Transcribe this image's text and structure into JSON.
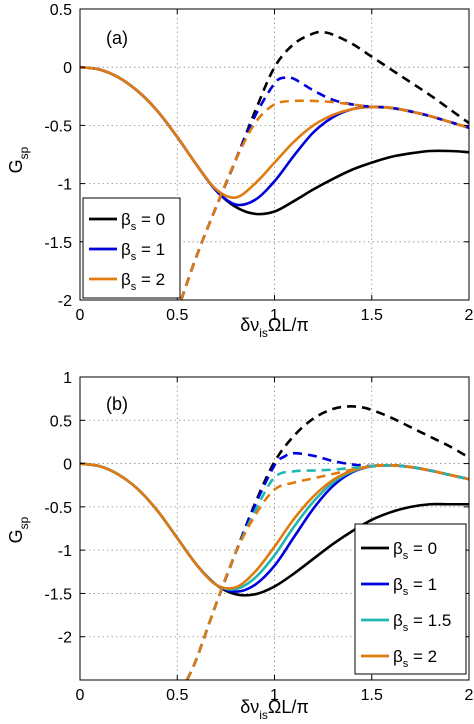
{
  "chart_data": [
    {
      "type": "line",
      "panel_label": "(a)",
      "xlabel": "δν",
      "xlabel_sub": "is",
      "xlabel_rest": "ΩL/π",
      "ylabel": "G",
      "ylabel_sub": "sp",
      "xlim": [
        0,
        2
      ],
      "ylim": [
        -2,
        0.5
      ],
      "xticks": [
        0,
        0.5,
        1,
        1.5,
        2
      ],
      "xtick_labels": [
        "0",
        "0.5",
        "1",
        "1.5",
        "2"
      ],
      "yticks": [
        0.5,
        0,
        -0.5,
        -1,
        -1.5,
        -2
      ],
      "ytick_labels": [
        "0.5",
        "0",
        "-0.5",
        "-1",
        "-1.5",
        "-2"
      ],
      "grid": true,
      "legend_position": "bottom-left",
      "series": [
        {
          "name": "β_s = 0",
          "label_main": "β",
          "label_sub": "s",
          "label_val": "= 0",
          "color": "#000000",
          "in_legend": true,
          "style": "solid",
          "x": [
            0,
            0.1,
            0.2,
            0.3,
            0.4,
            0.5,
            0.6,
            0.7,
            0.8,
            0.9,
            1.0,
            1.1,
            1.2,
            1.3,
            1.4,
            1.5,
            1.6,
            1.7,
            1.8,
            1.9,
            2.0
          ],
          "y": [
            0,
            -0.02,
            -0.09,
            -0.21,
            -0.38,
            -0.6,
            -0.84,
            -1.06,
            -1.2,
            -1.26,
            -1.24,
            -1.15,
            -1.05,
            -0.96,
            -0.88,
            -0.82,
            -0.77,
            -0.74,
            -0.72,
            -0.72,
            -0.73
          ]
        },
        {
          "name": "β_s = 1",
          "label_main": "β",
          "label_sub": "s",
          "label_val": "= 1",
          "color": "#0000dd",
          "in_legend": true,
          "style": "solid",
          "x": [
            0,
            0.1,
            0.2,
            0.3,
            0.4,
            0.5,
            0.6,
            0.7,
            0.8,
            0.9,
            1.0,
            1.1,
            1.2,
            1.3,
            1.4,
            1.5,
            1.6,
            1.7,
            1.8,
            1.9,
            2.0
          ],
          "y": [
            0,
            -0.02,
            -0.09,
            -0.21,
            -0.38,
            -0.6,
            -0.84,
            -1.06,
            -1.18,
            -1.14,
            -0.98,
            -0.76,
            -0.56,
            -0.43,
            -0.36,
            -0.34,
            -0.35,
            -0.38,
            -0.42,
            -0.47,
            -0.52
          ]
        },
        {
          "name": "β_s = 2",
          "label_main": "β",
          "label_sub": "s",
          "label_val": "= 2",
          "color": "#e07b10",
          "in_legend": true,
          "style": "solid",
          "x": [
            0,
            0.1,
            0.2,
            0.3,
            0.4,
            0.5,
            0.6,
            0.7,
            0.8,
            0.9,
            1.0,
            1.1,
            1.2,
            1.3,
            1.4,
            1.5,
            1.6,
            1.7,
            1.8,
            1.9,
            2.0
          ],
          "y": [
            0,
            -0.02,
            -0.09,
            -0.21,
            -0.38,
            -0.6,
            -0.84,
            -1.05,
            -1.12,
            -1.0,
            -0.82,
            -0.64,
            -0.5,
            -0.41,
            -0.36,
            -0.34,
            -0.35,
            -0.38,
            -0.42,
            -0.47,
            -0.52
          ]
        },
        {
          "name": "β_s = 0 (dashed)",
          "color": "#000000",
          "in_legend": false,
          "style": "dashed",
          "x": [
            0.52,
            0.6,
            0.7,
            0.8,
            0.9,
            1.0,
            1.1,
            1.2,
            1.25,
            1.3,
            1.4,
            1.5,
            1.6,
            1.7,
            1.8,
            1.9,
            2.0
          ],
          "y": [
            -2.0,
            -1.62,
            -1.2,
            -0.8,
            -0.38,
            0.0,
            0.2,
            0.29,
            0.3,
            0.28,
            0.2,
            0.09,
            -0.02,
            -0.13,
            -0.24,
            -0.36,
            -0.48
          ]
        },
        {
          "name": "β_s = 1 (dashed)",
          "color": "#0000dd",
          "in_legend": false,
          "style": "dashed",
          "x": [
            0.52,
            0.6,
            0.7,
            0.8,
            0.9,
            1.0,
            1.05,
            1.1,
            1.2,
            1.3,
            1.4,
            1.5,
            1.6,
            1.7,
            1.8,
            1.9,
            2.0
          ],
          "y": [
            -2.0,
            -1.62,
            -1.2,
            -0.8,
            -0.42,
            -0.14,
            -0.09,
            -0.1,
            -0.2,
            -0.28,
            -0.32,
            -0.34,
            -0.35,
            -0.38,
            -0.42,
            -0.47,
            -0.52
          ]
        },
        {
          "name": "β_s = 2 (dashed)",
          "color": "#e07b10",
          "in_legend": false,
          "style": "dashed",
          "x": [
            0.52,
            0.6,
            0.7,
            0.8,
            0.9,
            1.0,
            1.1,
            1.2,
            1.3,
            1.4,
            1.5,
            1.6,
            1.7,
            1.8,
            1.9,
            2.0
          ],
          "y": [
            -2.0,
            -1.62,
            -1.2,
            -0.8,
            -0.48,
            -0.32,
            -0.29,
            -0.29,
            -0.3,
            -0.32,
            -0.34,
            -0.35,
            -0.38,
            -0.42,
            -0.47,
            -0.52
          ]
        }
      ]
    },
    {
      "type": "line",
      "panel_label": "(b)",
      "xlabel": "δν",
      "xlabel_sub": "is",
      "xlabel_rest": "ΩL/π",
      "ylabel": "G",
      "ylabel_sub": "sp",
      "xlim": [
        0,
        2
      ],
      "ylim": [
        -2.5,
        1
      ],
      "xticks": [
        0,
        0.5,
        1,
        1.5,
        2
      ],
      "xtick_labels": [
        "0",
        "0.5",
        "1",
        "1.5",
        "2"
      ],
      "yticks": [
        1,
        0.5,
        0,
        -0.5,
        -1,
        -1.5,
        -2
      ],
      "ytick_labels": [
        "1",
        "0.5",
        "0",
        "-0.5",
        "-1",
        "-1.5",
        "-2"
      ],
      "grid": true,
      "legend_position": "bottom-right",
      "series": [
        {
          "name": "β_s = 0",
          "label_main": "β",
          "label_sub": "s",
          "label_val": "= 0",
          "color": "#000000",
          "in_legend": true,
          "style": "solid",
          "x": [
            0,
            0.1,
            0.2,
            0.3,
            0.4,
            0.5,
            0.6,
            0.7,
            0.8,
            0.9,
            1.0,
            1.1,
            1.2,
            1.3,
            1.4,
            1.5,
            1.6,
            1.7,
            1.8,
            1.9,
            2.0
          ],
          "y": [
            0,
            -0.03,
            -0.13,
            -0.3,
            -0.55,
            -0.86,
            -1.17,
            -1.4,
            -1.51,
            -1.51,
            -1.42,
            -1.27,
            -1.1,
            -0.93,
            -0.78,
            -0.65,
            -0.56,
            -0.5,
            -0.47,
            -0.47,
            -0.47
          ]
        },
        {
          "name": "β_s = 1",
          "label_main": "β",
          "label_sub": "s",
          "label_val": "= 1",
          "color": "#0000dd",
          "in_legend": true,
          "style": "solid",
          "x": [
            0,
            0.1,
            0.2,
            0.3,
            0.4,
            0.5,
            0.6,
            0.7,
            0.8,
            0.9,
            1.0,
            1.1,
            1.2,
            1.3,
            1.4,
            1.5,
            1.6,
            1.7,
            1.8,
            1.9,
            2.0
          ],
          "y": [
            0,
            -0.03,
            -0.13,
            -0.3,
            -0.55,
            -0.86,
            -1.17,
            -1.4,
            -1.48,
            -1.4,
            -1.18,
            -0.85,
            -0.52,
            -0.26,
            -0.1,
            -0.03,
            -0.02,
            -0.04,
            -0.08,
            -0.13,
            -0.18
          ]
        },
        {
          "name": "β_s = 1.5",
          "label_main": "β",
          "label_sub": "s",
          "label_val": "= 1.5",
          "color": "#1fb8b0",
          "in_legend": true,
          "style": "solid",
          "x": [
            0,
            0.1,
            0.2,
            0.3,
            0.4,
            0.5,
            0.6,
            0.7,
            0.8,
            0.9,
            1.0,
            1.1,
            1.2,
            1.3,
            1.4,
            1.5,
            1.6,
            1.7,
            1.8,
            1.9,
            2.0
          ],
          "y": [
            0,
            -0.03,
            -0.13,
            -0.3,
            -0.55,
            -0.86,
            -1.17,
            -1.4,
            -1.45,
            -1.32,
            -1.06,
            -0.73,
            -0.44,
            -0.22,
            -0.09,
            -0.03,
            -0.02,
            -0.04,
            -0.08,
            -0.13,
            -0.18
          ]
        },
        {
          "name": "β_s = 2",
          "label_main": "β",
          "label_sub": "s",
          "label_val": "= 2",
          "color": "#e07b10",
          "in_legend": true,
          "style": "solid",
          "x": [
            0,
            0.1,
            0.2,
            0.3,
            0.4,
            0.5,
            0.6,
            0.7,
            0.8,
            0.9,
            1.0,
            1.1,
            1.2,
            1.3,
            1.4,
            1.5,
            1.6,
            1.7,
            1.8,
            1.9,
            2.0
          ],
          "y": [
            0,
            -0.03,
            -0.13,
            -0.3,
            -0.55,
            -0.86,
            -1.17,
            -1.4,
            -1.43,
            -1.25,
            -0.96,
            -0.64,
            -0.38,
            -0.19,
            -0.08,
            -0.03,
            -0.02,
            -0.04,
            -0.08,
            -0.13,
            -0.18
          ]
        },
        {
          "name": "β_s = 0 (dashed)",
          "color": "#000000",
          "in_legend": false,
          "style": "dashed",
          "x": [
            0.55,
            0.6,
            0.7,
            0.8,
            0.9,
            1.0,
            1.1,
            1.2,
            1.3,
            1.38,
            1.45,
            1.5,
            1.6,
            1.7,
            1.8,
            1.9,
            2.0
          ],
          "y": [
            -2.5,
            -2.25,
            -1.62,
            -1.03,
            -0.46,
            0.02,
            0.32,
            0.52,
            0.63,
            0.66,
            0.65,
            0.62,
            0.53,
            0.42,
            0.31,
            0.2,
            0.07
          ]
        },
        {
          "name": "β_s = 1 (dashed)",
          "color": "#0000dd",
          "in_legend": false,
          "style": "dashed",
          "x": [
            0.55,
            0.6,
            0.7,
            0.8,
            0.9,
            1.0,
            1.05,
            1.1,
            1.2,
            1.3,
            1.4,
            1.5,
            1.6,
            1.7,
            1.8,
            1.9,
            2.0
          ],
          "y": [
            -2.5,
            -2.25,
            -1.62,
            -1.03,
            -0.48,
            -0.02,
            0.08,
            0.12,
            0.09,
            0.03,
            -0.01,
            -0.03,
            -0.02,
            -0.04,
            -0.08,
            -0.13,
            -0.18
          ]
        },
        {
          "name": "β_s = 1.5 (dashed)",
          "color": "#1fb8b0",
          "in_legend": false,
          "style": "dashed",
          "x": [
            0.55,
            0.6,
            0.7,
            0.8,
            0.9,
            1.0,
            1.1,
            1.2,
            1.3,
            1.4,
            1.5,
            1.6,
            1.7,
            1.8,
            1.9,
            2.0
          ],
          "y": [
            -2.5,
            -2.25,
            -1.62,
            -1.03,
            -0.55,
            -0.16,
            -0.09,
            -0.08,
            -0.07,
            -0.05,
            -0.03,
            -0.02,
            -0.04,
            -0.08,
            -0.13,
            -0.18
          ]
        },
        {
          "name": "β_s = 2 (dashed)",
          "color": "#e07b10",
          "in_legend": false,
          "style": "dashed",
          "x": [
            0.55,
            0.6,
            0.7,
            0.8,
            0.9,
            1.0,
            1.1,
            1.2,
            1.3,
            1.4,
            1.5,
            1.6,
            1.7,
            1.8,
            1.9,
            2.0
          ],
          "y": [
            -2.5,
            -2.25,
            -1.62,
            -1.03,
            -0.6,
            -0.3,
            -0.22,
            -0.17,
            -0.12,
            -0.07,
            -0.03,
            -0.02,
            -0.04,
            -0.08,
            -0.13,
            -0.18
          ]
        }
      ]
    }
  ]
}
